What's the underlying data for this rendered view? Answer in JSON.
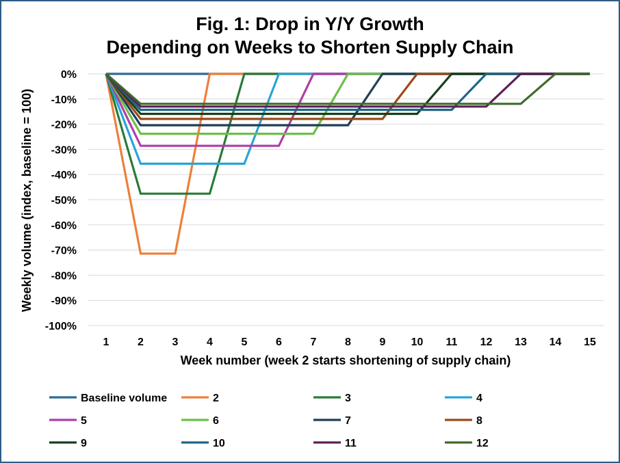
{
  "chart_data": {
    "type": "line",
    "title_lines": [
      "Fig. 1: Drop in Y/Y Growth",
      "Depending on Weeks to Shorten Supply Chain"
    ],
    "xlabel": "Week number (week 2 starts shortening of supply chain)",
    "ylabel": "Weekly volume (index, baseline = 100)",
    "x": [
      1,
      2,
      3,
      4,
      5,
      6,
      7,
      8,
      9,
      10,
      11,
      12,
      13,
      14,
      15
    ],
    "x_tick_labels": [
      "1",
      "2",
      "3",
      "4",
      "5",
      "6",
      "7",
      "8",
      "9",
      "10",
      "11",
      "12",
      "13",
      "14",
      "15"
    ],
    "ylim": [
      -100,
      0
    ],
    "y_ticks": [
      0,
      -10,
      -20,
      -30,
      -40,
      -50,
      -60,
      -70,
      -80,
      -90,
      -100
    ],
    "y_tick_labels": [
      "0%",
      "-10%",
      "-20%",
      "-30%",
      "-40%",
      "-50%",
      "-60%",
      "-70%",
      "-80%",
      "-90%",
      "-100%"
    ],
    "grid": true,
    "legend_position": "bottom",
    "series": [
      {
        "name": "Baseline volume",
        "color": "#2e6a96",
        "values": [
          0,
          0,
          0,
          0,
          0,
          0,
          0,
          0,
          0,
          0,
          0,
          0,
          0,
          0,
          0
        ]
      },
      {
        "name": "2",
        "color": "#ee7f3a",
        "values": [
          0,
          -71.4,
          -71.4,
          0,
          0,
          0,
          0,
          0,
          0,
          0,
          0,
          0,
          0,
          0,
          0
        ]
      },
      {
        "name": "3",
        "color": "#2a7a3a",
        "values": [
          0,
          -47.6,
          -47.6,
          -47.6,
          0,
          0,
          0,
          0,
          0,
          0,
          0,
          0,
          0,
          0,
          0
        ]
      },
      {
        "name": "4",
        "color": "#2aa3d8",
        "values": [
          0,
          -35.7,
          -35.7,
          -35.7,
          -35.7,
          0,
          0,
          0,
          0,
          0,
          0,
          0,
          0,
          0,
          0
        ]
      },
      {
        "name": "5",
        "color": "#b03ea6",
        "values": [
          0,
          -28.6,
          -28.6,
          -28.6,
          -28.6,
          -28.6,
          0,
          0,
          0,
          0,
          0,
          0,
          0,
          0,
          0
        ]
      },
      {
        "name": "6",
        "color": "#6cbf4a",
        "values": [
          0,
          -23.8,
          -23.8,
          -23.8,
          -23.8,
          -23.8,
          -23.8,
          0,
          0,
          0,
          0,
          0,
          0,
          0,
          0
        ]
      },
      {
        "name": "7",
        "color": "#1f3f57",
        "values": [
          0,
          -20.4,
          -20.4,
          -20.4,
          -20.4,
          -20.4,
          -20.4,
          -20.4,
          0,
          0,
          0,
          0,
          0,
          0,
          0
        ]
      },
      {
        "name": "8",
        "color": "#9a4a1c",
        "values": [
          0,
          -17.9,
          -17.9,
          -17.9,
          -17.9,
          -17.9,
          -17.9,
          -17.9,
          -17.9,
          0,
          0,
          0,
          0,
          0,
          0
        ]
      },
      {
        "name": "9",
        "color": "#14401e",
        "values": [
          0,
          -15.9,
          -15.9,
          -15.9,
          -15.9,
          -15.9,
          -15.9,
          -15.9,
          -15.9,
          -15.9,
          0,
          0,
          0,
          0,
          0
        ]
      },
      {
        "name": "10",
        "color": "#1d6688",
        "values": [
          0,
          -14.3,
          -14.3,
          -14.3,
          -14.3,
          -14.3,
          -14.3,
          -14.3,
          -14.3,
          -14.3,
          -14.3,
          0,
          0,
          0,
          0
        ]
      },
      {
        "name": "11",
        "color": "#5e1f56",
        "values": [
          0,
          -13.0,
          -13.0,
          -13.0,
          -13.0,
          -13.0,
          -13.0,
          -13.0,
          -13.0,
          -13.0,
          -13.0,
          -13.0,
          0,
          0,
          0
        ]
      },
      {
        "name": "12",
        "color": "#3f6a2a",
        "values": [
          0,
          -11.9,
          -11.9,
          -11.9,
          -11.9,
          -11.9,
          -11.9,
          -11.9,
          -11.9,
          -11.9,
          -11.9,
          -11.9,
          -11.9,
          0,
          0
        ]
      }
    ]
  }
}
